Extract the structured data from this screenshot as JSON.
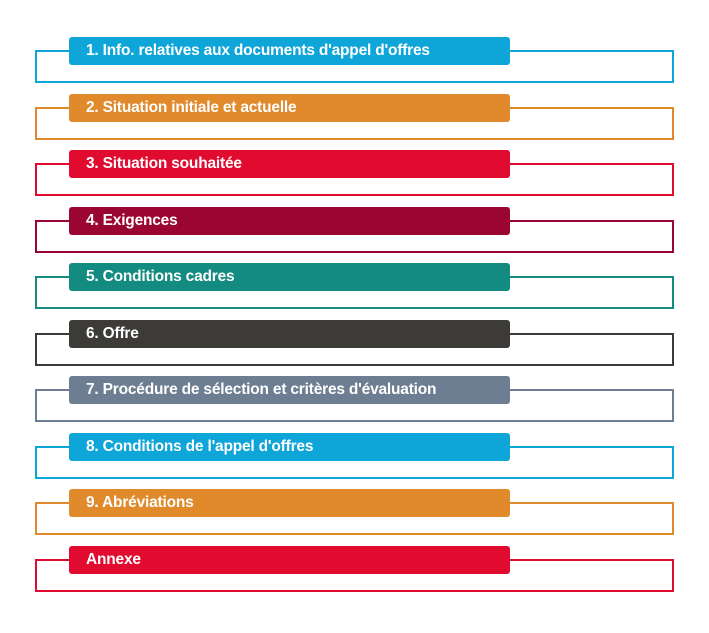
{
  "sections": [
    {
      "label": "1. Info. relatives aux documents d'appel d'offres",
      "color": "#0ea5d9"
    },
    {
      "label": "2. Situation initiale et actuelle",
      "color": "#e08a2c"
    },
    {
      "label": "3. Situation souhaitée",
      "color": "#e10a2f"
    },
    {
      "label": "4. Exigences",
      "color": "#9b0531"
    },
    {
      "label": "5. Conditions cadres",
      "color": "#138b80"
    },
    {
      "label": "6. Offre",
      "color": "#3c3b38"
    },
    {
      "label": "7. Procédure de sélection et critères d'évaluation",
      "color": "#6d7e92"
    },
    {
      "label": "8. Conditions de l'appel d'offres",
      "color": "#0ea5d9"
    },
    {
      "label": "9. Abréviations",
      "color": "#e08a2c"
    },
    {
      "label": "Annexe",
      "color": "#e10a2f"
    }
  ]
}
